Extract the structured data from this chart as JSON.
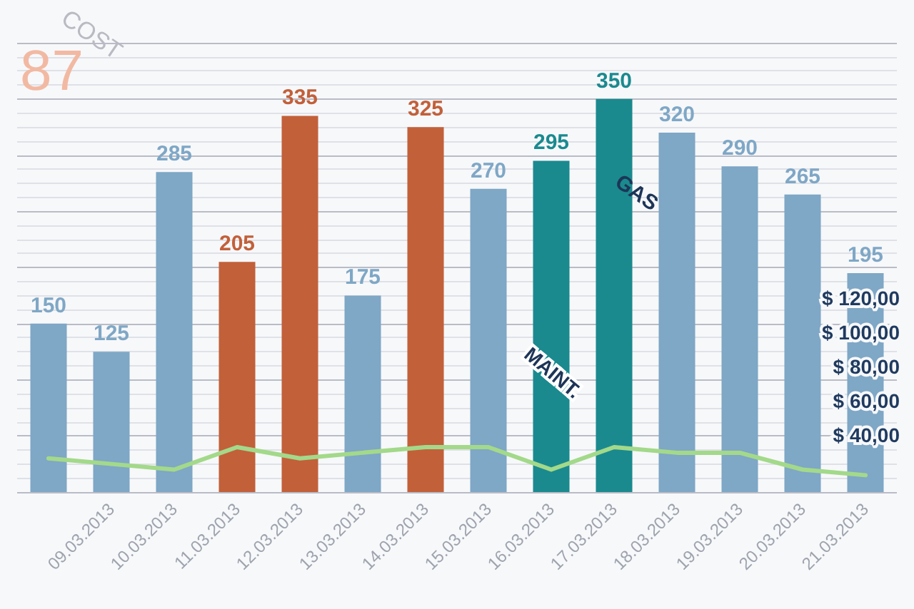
{
  "chart_data": {
    "type": "bar",
    "categories": [
      null,
      "09.03.2013",
      "10.03.2013",
      "11.03.2013",
      "12.03.2013",
      "13.03.2013",
      "14.03.2013",
      "15.03.2013",
      "16.03.2013",
      "17.03.2013",
      "18.03.2013",
      "19.03.2013",
      "20.03.2013",
      "21.03.2013"
    ],
    "series": [
      {
        "values": [
          150,
          125,
          285,
          205,
          335,
          175,
          325,
          270,
          295,
          350,
          320,
          290,
          265,
          195
        ],
        "value_labels": [
          "150",
          "125",
          "285",
          "205",
          "335",
          "175",
          "325",
          "270",
          "295",
          "350",
          "320",
          "290",
          "265",
          "195"
        ],
        "colors": [
          "#7fa7c6",
          "#7fa7c6",
          "#7fa7c6",
          "#c2603a",
          "#c2603a",
          "#7fa7c6",
          "#c2603a",
          "#7fa7c6",
          "#1a8a8f",
          "#1a8a8f",
          "#7fa7c6",
          "#7fa7c6",
          "#7fa7c6",
          "#7fa7c6"
        ]
      },
      {
        "type": "line",
        "color": "#a3d98a",
        "values": [
          30,
          25,
          20,
          40,
          30,
          35,
          40,
          40,
          20,
          40,
          35,
          35,
          20,
          15
        ],
        "marker": "none",
        "line_style": "solid"
      }
    ],
    "ylim": [
      0,
      400
    ],
    "yticks": [
      {
        "value": 0,
        "label": null
      },
      {
        "value": 50,
        "label": null
      },
      {
        "value": 100,
        "label": null
      },
      {
        "value": 150,
        "label": null
      },
      {
        "value": 200,
        "label": null
      },
      {
        "value": 250,
        "label": null
      },
      {
        "value": 300,
        "label": null
      },
      {
        "value": 350,
        "label": null
      },
      {
        "value": 400,
        "label": null
      }
    ],
    "tick_labels": "x",
    "grid": "y",
    "annotations": [
      "COST",
      "87",
      "GAS",
      "MAINT.",
      "$ 120,00",
      "$ 100,00",
      "$ 80,00",
      "$ 60,00",
      "$ 40,00"
    ]
  }
}
